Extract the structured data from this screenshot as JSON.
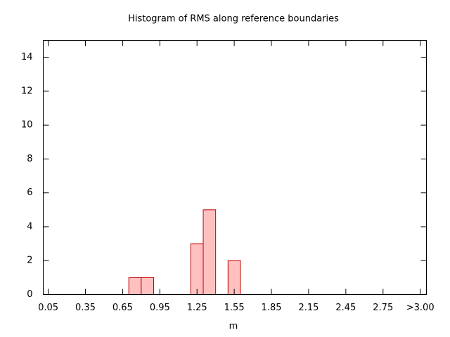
{
  "chart_data": {
    "type": "histogram",
    "title": "Histogram of RMS along reference boundaries",
    "xlabel": "m",
    "bins": [
      0.7,
      0.8,
      0.9,
      1.0,
      1.1,
      1.2,
      1.3,
      1.4,
      1.5,
      1.6
    ],
    "values": [
      1,
      1,
      0,
      0,
      0,
      3,
      5,
      0,
      2
    ],
    "color": "#ffc0c0",
    "edge_color": "#c00000",
    "xlim": [
      0.01,
      3.1
    ],
    "xticks": [
      0.05,
      0.35,
      0.65,
      0.95,
      1.25,
      1.55,
      1.85,
      2.15,
      2.45,
      2.75,
      {
        "value": 3.05,
        "label": ">3.00"
      }
    ],
    "ylim": [
      0,
      15
    ],
    "yticks": [
      0,
      2,
      4,
      6,
      8,
      10,
      12,
      14
    ]
  }
}
